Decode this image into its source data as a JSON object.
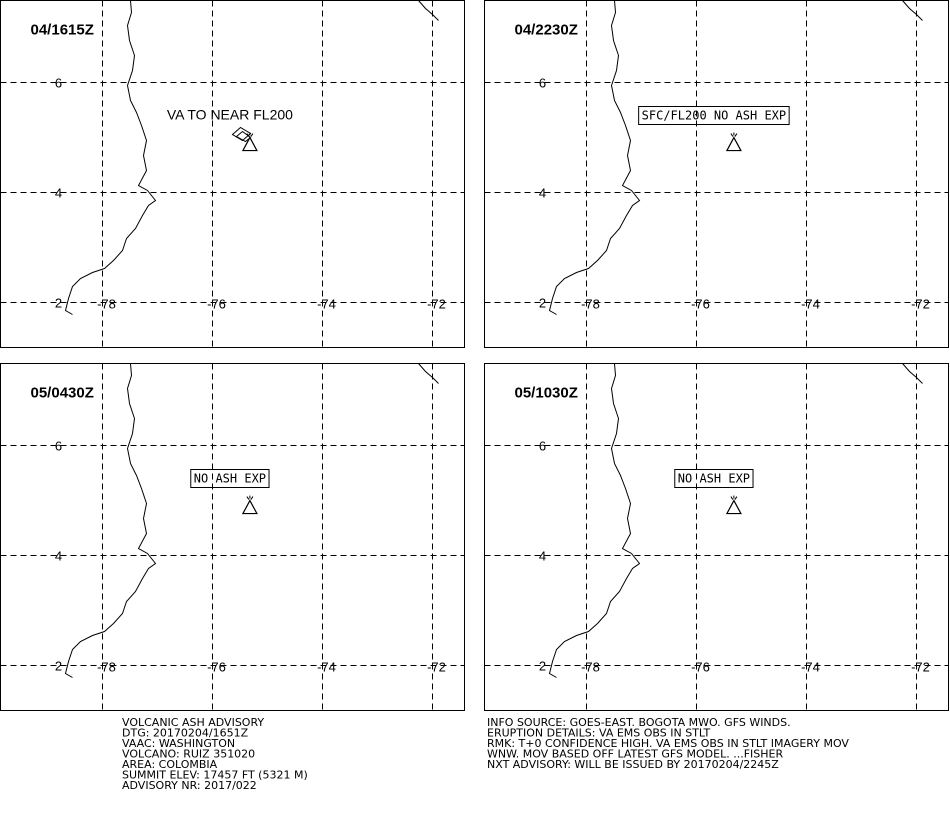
{
  "panels": [
    {
      "time": "04/1615Z",
      "note": "VA TO NEAR FL200",
      "boxed": false,
      "ash": true
    },
    {
      "time": "04/2230Z",
      "note": "SFC/FL200 NO ASH EXP",
      "boxed": true,
      "ash": false
    },
    {
      "time": "05/0430Z",
      "note": "NO ASH EXP",
      "boxed": true,
      "ash": false
    },
    {
      "time": "05/1030Z",
      "note": "NO ASH EXP",
      "boxed": true,
      "ash": false
    }
  ],
  "lat": [
    6,
    4,
    2
  ],
  "lon": [
    -78,
    -76,
    -74,
    -72
  ],
  "footer_left": [
    "VOLCANIC ASH ADVISORY",
    "DTG: 20170204/1651Z",
    "VAAC: WASHINGTON",
    "VOLCANO: RUIZ 351020",
    "AREA: COLOMBIA",
    "SUMMIT ELEV: 17457 FT (5321 M)",
    "ADVISORY NR: 2017/022"
  ],
  "footer_right": [
    "INFO SOURCE: GOES-EAST. BOGOTA MWO. GFS WINDS.",
    "ERUPTION DETAILS: VA EMS OBS IN STLT",
    "RMK: T+0 CONFIDENCE HIGH. VA EMS OBS IN STLT IMAGERY MOV",
    "WNW. MOV BASED OFF LATEST GFS MODEL. ...FISHER",
    "NXT ADVISORY: WILL BE ISSUED BY 20170204/2245Z"
  ]
}
